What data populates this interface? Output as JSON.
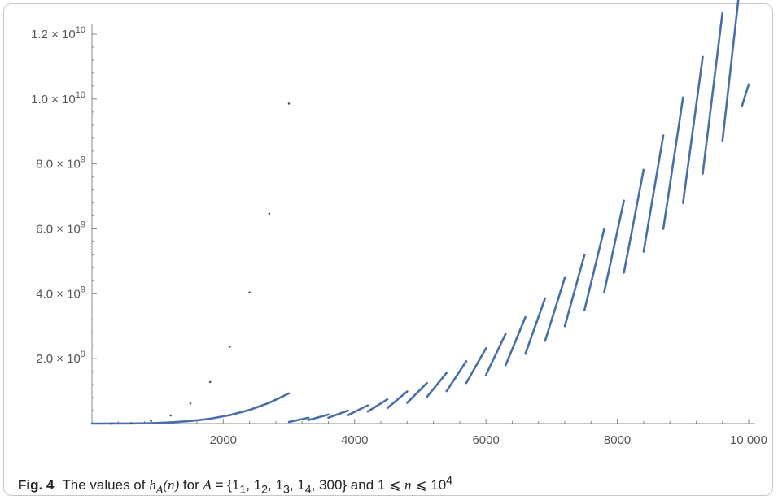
{
  "figure": {
    "label": "Fig. 4",
    "caption_text": "The values of h_A(n) for A = {1_1, 1_2, 1_3, 1_4, 300} and 1 ⩽ n ⩽ 10^4",
    "caption_parts": {
      "prefix": "The values of ",
      "h": "h",
      "h_sub": "A",
      "n_paren": "(n)",
      "for": " for ",
      "A": "A",
      "eq": " = {1",
      "s1": "1",
      "c1": ", 1",
      "s2": "2",
      "c2": ", 1",
      "s3": "3",
      "c3": ", 1",
      "s4": "4",
      "tail": ", 300} and 1 ⩽ ",
      "n": "n",
      "le": " ⩽ 10",
      "exp": "4"
    }
  },
  "chart_data": {
    "type": "scatter",
    "title": "",
    "xlabel": "",
    "ylabel": "",
    "xlim": [
      1,
      10000
    ],
    "ylim": [
      0,
      12000000000.0
    ],
    "x_ticks": [
      {
        "value": 2000,
        "label": "2000"
      },
      {
        "value": 4000,
        "label": "4000"
      },
      {
        "value": 6000,
        "label": "6000"
      },
      {
        "value": 8000,
        "label": "8000"
      },
      {
        "value": 10000,
        "label": "10 000"
      }
    ],
    "y_ticks": [
      {
        "value": 2000000000.0,
        "mantissa": "2.0",
        "exponent": "9"
      },
      {
        "value": 4000000000.0,
        "mantissa": "4.0",
        "exponent": "9"
      },
      {
        "value": 6000000000.0,
        "mantissa": "6.0",
        "exponent": "9"
      },
      {
        "value": 8000000000.0,
        "mantissa": "8.0",
        "exponent": "9"
      },
      {
        "value": 10000000000.0,
        "mantissa": "1.0",
        "exponent": "10"
      },
      {
        "value": 12000000000.0,
        "mantissa": "1.2",
        "exponent": "10"
      }
    ],
    "series": [
      {
        "color": "#4a6fa8",
        "segments": [
          {
            "x": [
              1,
              300
            ],
            "y": [
              0,
              400000
            ]
          },
          {
            "x": [
              300,
              600
            ],
            "y": [
              400000,
              3000000
            ]
          },
          {
            "x": [
              600,
              900
            ],
            "y": [
              3000000,
              12000000
            ]
          },
          {
            "x": [
              900,
              1200
            ],
            "y": [
              12000000,
              35000000
            ]
          },
          {
            "x": [
              1200,
              1500
            ],
            "y": [
              35000000,
              80000000
            ]
          },
          {
            "x": [
              1500,
              1800
            ],
            "y": [
              80000000,
              150000000
            ]
          },
          {
            "x": [
              1800,
              2100
            ],
            "y": [
              150000000,
              260000000
            ]
          },
          {
            "x": [
              2100,
              2400
            ],
            "y": [
              260000000,
              420000000
            ]
          },
          {
            "x": [
              2400,
              2700
            ],
            "y": [
              420000000,
              640000000
            ]
          },
          {
            "x": [
              2700,
              3000
            ],
            "y": [
              640000000,
              930000000
            ]
          },
          {
            "x": [
              3000,
              3300
            ],
            "y": [
              50000000,
              180000000
            ]
          },
          {
            "x": [
              3300,
              3600
            ],
            "y": [
              110000000,
              280000000
            ]
          },
          {
            "x": [
              3600,
              3900
            ],
            "y": [
              180000000,
              400000000
            ]
          },
          {
            "x": [
              3900,
              4200
            ],
            "y": [
              260000000,
              560000000
            ]
          },
          {
            "x": [
              4200,
              4500
            ],
            "y": [
              370000000,
              750000000
            ]
          },
          {
            "x": [
              4500,
              4800
            ],
            "y": [
              480000000,
              990000000
            ]
          },
          {
            "x": [
              4800,
              5100
            ],
            "y": [
              640000000,
              1250000000
            ]
          },
          {
            "x": [
              5100,
              5400
            ],
            "y": [
              820000000,
              1560000000
            ]
          },
          {
            "x": [
              5400,
              5700
            ],
            "y": [
              1000000000,
              1920000000
            ]
          },
          {
            "x": [
              5700,
              6000
            ],
            "y": [
              1250000000,
              2320000000
            ]
          },
          {
            "x": [
              6000,
              6300
            ],
            "y": [
              1500000000,
              2770000000
            ]
          },
          {
            "x": [
              6300,
              6600
            ],
            "y": [
              1800000000,
              3280000000
            ]
          },
          {
            "x": [
              6600,
              6900
            ],
            "y": [
              2150000000,
              3860000000
            ]
          },
          {
            "x": [
              6900,
              7200
            ],
            "y": [
              2550000000,
              4490000000
            ]
          },
          {
            "x": [
              7200,
              7500
            ],
            "y": [
              3000000000,
              5200000000
            ]
          },
          {
            "x": [
              7500,
              7800
            ],
            "y": [
              3500000000,
              6000000000
            ]
          },
          {
            "x": [
              7800,
              8100
            ],
            "y": [
              4050000000,
              6870000000
            ]
          },
          {
            "x": [
              8100,
              8400
            ],
            "y": [
              4650000000,
              7820000000
            ]
          },
          {
            "x": [
              8400,
              8700
            ],
            "y": [
              5300000000,
              8880000000
            ]
          },
          {
            "x": [
              8700,
              9000
            ],
            "y": [
              6000000000,
              10050000000
            ]
          },
          {
            "x": [
              9000,
              9300
            ],
            "y": [
              6800000000,
              11300000000
            ]
          },
          {
            "x": [
              9300,
              9600
            ],
            "y": [
              7700000000,
              12650000000
            ]
          },
          {
            "x": [
              9600,
              9900
            ],
            "y": [
              8700000000,
              14100000000
            ]
          },
          {
            "x": [
              9900,
              10000
            ],
            "y": [
              9800000000,
              10450000000
            ]
          }
        ]
      },
      {
        "color": "#4a6fa8",
        "points": [
          {
            "x": 300,
            "y": 1000000
          },
          {
            "x": 600,
            "y": 15000000
          },
          {
            "x": 900,
            "y": 80000000
          },
          {
            "x": 1200,
            "y": 250000000
          },
          {
            "x": 1500,
            "y": 620000000
          },
          {
            "x": 1800,
            "y": 1280000000
          },
          {
            "x": 2100,
            "y": 2370000000
          },
          {
            "x": 2400,
            "y": 4040000000
          },
          {
            "x": 2700,
            "y": 6470000000
          },
          {
            "x": 3000,
            "y": 9860000000
          }
        ]
      }
    ],
    "grid": false,
    "legend": "none"
  }
}
